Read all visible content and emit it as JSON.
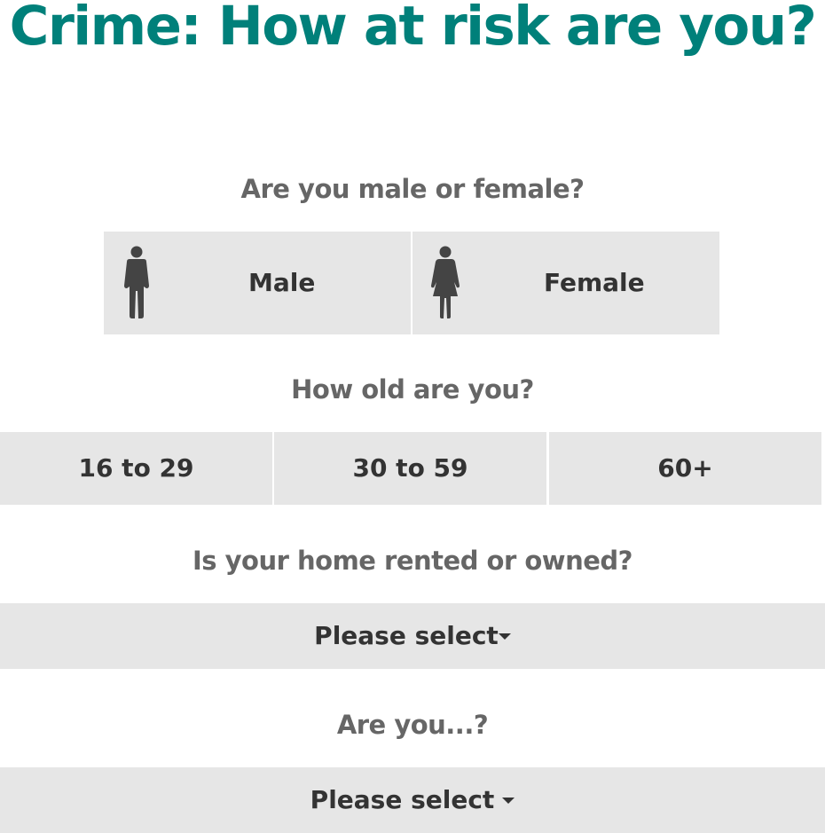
{
  "page": {
    "title": "Crime: How at risk are you?",
    "title_color": "#00807a"
  },
  "gender": {
    "question": "Are you male or female?",
    "options": [
      {
        "label": "Male",
        "icon": "male-figure-icon"
      },
      {
        "label": "Female",
        "icon": "female-figure-icon"
      }
    ]
  },
  "age": {
    "question": "How old are you?",
    "options": [
      {
        "label": "16 to 29"
      },
      {
        "label": "30 to 59"
      },
      {
        "label": "60+"
      }
    ]
  },
  "home": {
    "question": "Is your home rented or owned?",
    "select_label": "Please select",
    "caret_icon": "caret-down-icon"
  },
  "status": {
    "question": "Are you...?",
    "select_label": "Please select",
    "caret_icon": "caret-down-icon"
  },
  "colors": {
    "option_background": "#e6e6e6",
    "question_text": "#666666",
    "option_text": "#333333"
  }
}
